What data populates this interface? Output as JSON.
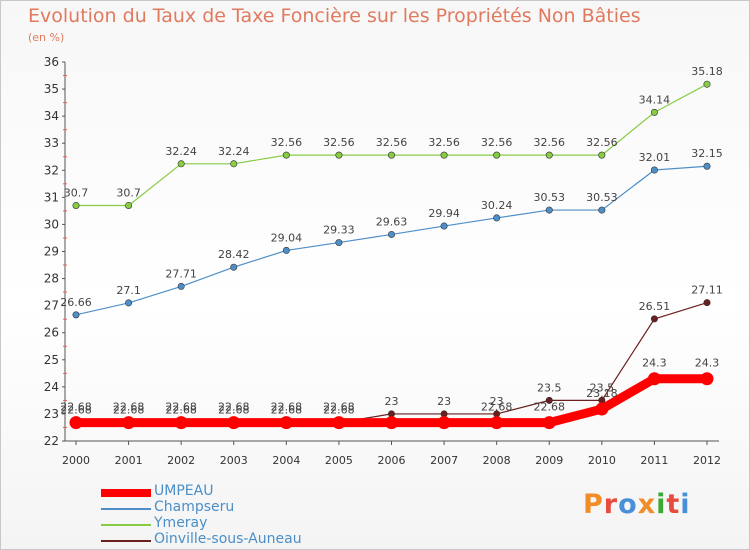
{
  "header": {
    "title": "Evolution du Taux de Taxe Foncière sur les Propriétés Non Bâties",
    "unit": "(en %)"
  },
  "logo": {
    "text": "Proxiti",
    "colors": [
      "#f28c28",
      "#e84c3d",
      "#4a90d9",
      "#f28c28",
      "#3aaa35",
      "#e84c3d",
      "#4a90d9"
    ]
  },
  "colors": {
    "UMPEAU": "#ff0000",
    "Champseru": "#4f8fc8",
    "Ymeray": "#88cc44",
    "Oinville-sous-Auneau": "#6b1e1e"
  },
  "chart_data": {
    "type": "line",
    "x": [
      "2000",
      "2001",
      "2002",
      "2003",
      "2004",
      "2005",
      "2006",
      "2007",
      "2008",
      "2009",
      "2010",
      "2011",
      "2012"
    ],
    "ylim": [
      22,
      36
    ],
    "yticks": [
      "22",
      "23",
      "24",
      "25",
      "26",
      "27",
      "28",
      "29",
      "30",
      "31",
      "32",
      "33",
      "34",
      "35",
      "36"
    ],
    "grid": false,
    "legend": "bottom-left",
    "series": [
      {
        "name": "UMPEAU",
        "values": [
          22.68,
          22.68,
          22.68,
          22.68,
          22.68,
          22.68,
          22.68,
          22.68,
          22.68,
          22.68,
          23.18,
          24.3,
          24.3
        ],
        "labels": [
          "22.68",
          "22.68",
          "22.68",
          "22.68",
          "22.68",
          "22.68",
          "",
          "",
          "22.68",
          "22.68",
          "23.18",
          "24.3",
          "24.3"
        ]
      },
      {
        "name": "Champseru",
        "values": [
          26.66,
          27.1,
          27.71,
          28.42,
          29.04,
          29.33,
          29.63,
          29.94,
          30.24,
          30.53,
          30.53,
          32.01,
          32.15
        ],
        "labels": [
          "26.66",
          "27.1",
          "27.71",
          "28.42",
          "29.04",
          "29.33",
          "29.63",
          "29.94",
          "30.24",
          "30.53",
          "30.53",
          "32.01",
          "32.15"
        ]
      },
      {
        "name": "Ymeray",
        "values": [
          30.7,
          30.7,
          32.24,
          32.24,
          32.56,
          32.56,
          32.56,
          32.56,
          32.56,
          32.56,
          32.56,
          34.14,
          35.18
        ],
        "labels": [
          "30.7",
          "30.7",
          "32.24",
          "32.24",
          "32.56",
          "32.56",
          "32.56",
          "32.56",
          "32.56",
          "32.56",
          "32.56",
          "34.14",
          "35.18"
        ]
      },
      {
        "name": "Oinville-sous-Auneau",
        "values": [
          22.68,
          22.68,
          22.68,
          22.68,
          22.68,
          22.68,
          23,
          23,
          23,
          23.5,
          23.5,
          26.51,
          27.11
        ],
        "labels": [
          "22.68",
          "22.68",
          "22.68",
          "22.68",
          "22.68",
          "22.68",
          "23",
          "23",
          "23",
          "23.5",
          "23.5",
          "26.51",
          "27.11"
        ]
      }
    ]
  }
}
